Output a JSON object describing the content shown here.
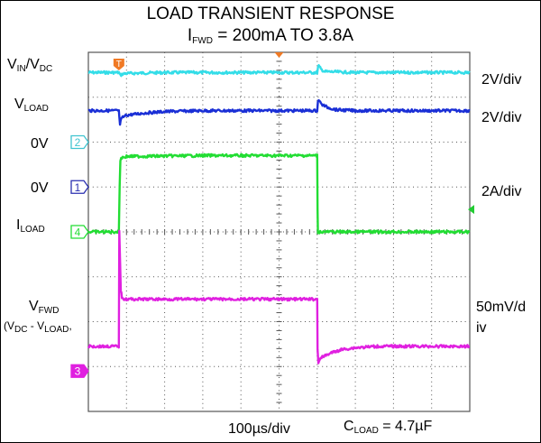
{
  "chart_data": {
    "type": "line",
    "title_line1": "LOAD TRANSIENT RESPONSE",
    "title_line2": {
      "prefix": "I",
      "sub": "FWD",
      "suffix": " = 200mA TO 3.8A"
    },
    "x_unit": "µs",
    "x_range": [
      0,
      1000
    ],
    "x_scale_label": "100µs/div",
    "note": {
      "prefix": "C",
      "sub": "LOAD",
      "suffix": " = 4.7µF"
    },
    "trigger_marker": "T",
    "series": [
      {
        "key": "vin",
        "label_parts": [
          [
            "V",
            ""
          ],
          [
            "IN",
            "sub"
          ],
          [
            "/V",
            ""
          ],
          [
            "DC",
            "sub"
          ]
        ],
        "scale": "2V/div",
        "color": "#33dde8",
        "marker": "",
        "x": [
          0,
          80,
          82,
          84,
          86,
          90,
          100,
          150,
          200,
          300,
          400,
          600,
          602,
          604,
          610,
          620,
          700,
          1000
        ],
        "y_div": [
          3.55,
          3.55,
          3.52,
          3.48,
          3.5,
          3.52,
          3.53,
          3.54,
          3.55,
          3.55,
          3.55,
          3.55,
          3.65,
          3.7,
          3.62,
          3.57,
          3.55,
          3.55
        ]
      },
      {
        "key": "vload",
        "label_parts": [
          [
            "V",
            ""
          ],
          [
            "LOAD",
            "sub"
          ]
        ],
        "scale": "2V/div",
        "color": "#1a2fd6",
        "marker": "",
        "x": [
          0,
          80,
          81,
          83,
          86,
          90,
          100,
          150,
          200,
          300,
          400,
          600,
          602,
          604,
          610,
          625,
          650,
          700,
          1000
        ],
        "y_div": [
          2.7,
          2.7,
          2.55,
          2.4,
          2.5,
          2.55,
          2.6,
          2.65,
          2.68,
          2.7,
          2.7,
          2.7,
          2.9,
          2.95,
          2.85,
          2.78,
          2.72,
          2.7,
          2.7
        ]
      },
      {
        "key": "offset2",
        "label_parts": [
          [
            "0V",
            ""
          ]
        ],
        "scale": "",
        "color": "#40c4d0",
        "marker": "2",
        "marker_y_div": 2.0
      },
      {
        "key": "offset1",
        "label_parts": [
          [
            "0V",
            ""
          ]
        ],
        "scale": "",
        "color": "#2a2fb0",
        "marker": "1",
        "marker_y_div": 1.0
      },
      {
        "key": "iload",
        "label_parts": [
          [
            "I",
            ""
          ],
          [
            "LOAD",
            "sub"
          ]
        ],
        "scale": "2A/div",
        "color": "#22dd33",
        "marker": "4",
        "marker_y_div": 0.0,
        "x": [
          0,
          80,
          82,
          84,
          86,
          100,
          300,
          600,
          601,
          602,
          1000
        ],
        "y_div": [
          0.0,
          0.0,
          1.0,
          1.6,
          1.65,
          1.68,
          1.7,
          1.7,
          0.5,
          0.0,
          0.0
        ]
      },
      {
        "key": "vfwd",
        "label_parts": [
          [
            "V",
            ""
          ],
          [
            "FWD",
            "sub"
          ]
        ],
        "label2_parts": [
          [
            "(V",
            ""
          ],
          [
            "DC",
            "sub"
          ],
          [
            " - V",
            ""
          ],
          [
            "LOAD",
            "sub"
          ],
          [
            ",",
            ""
          ]
        ],
        "scale": "50mV/div",
        "color": "#e020e0",
        "marker": "3",
        "marker_y_div": -3.1,
        "x": [
          0,
          80,
          81,
          83,
          85,
          88,
          95,
          110,
          150,
          300,
          600,
          601,
          603,
          606,
          615,
          635,
          665,
          700,
          760,
          1000
        ],
        "y_div": [
          -2.55,
          -2.55,
          0.0,
          -0.6,
          -1.3,
          -1.45,
          -1.5,
          -1.5,
          -1.5,
          -1.5,
          -1.5,
          -2.6,
          -2.9,
          -2.85,
          -2.78,
          -2.7,
          -2.62,
          -2.58,
          -2.55,
          -2.55
        ]
      }
    ],
    "right_labels": [
      "2V/div",
      "2V/div",
      "2A/div",
      "50mV/d",
      "iv"
    ],
    "grid": true,
    "grid_divisions": {
      "x": 10,
      "y": 8
    }
  }
}
